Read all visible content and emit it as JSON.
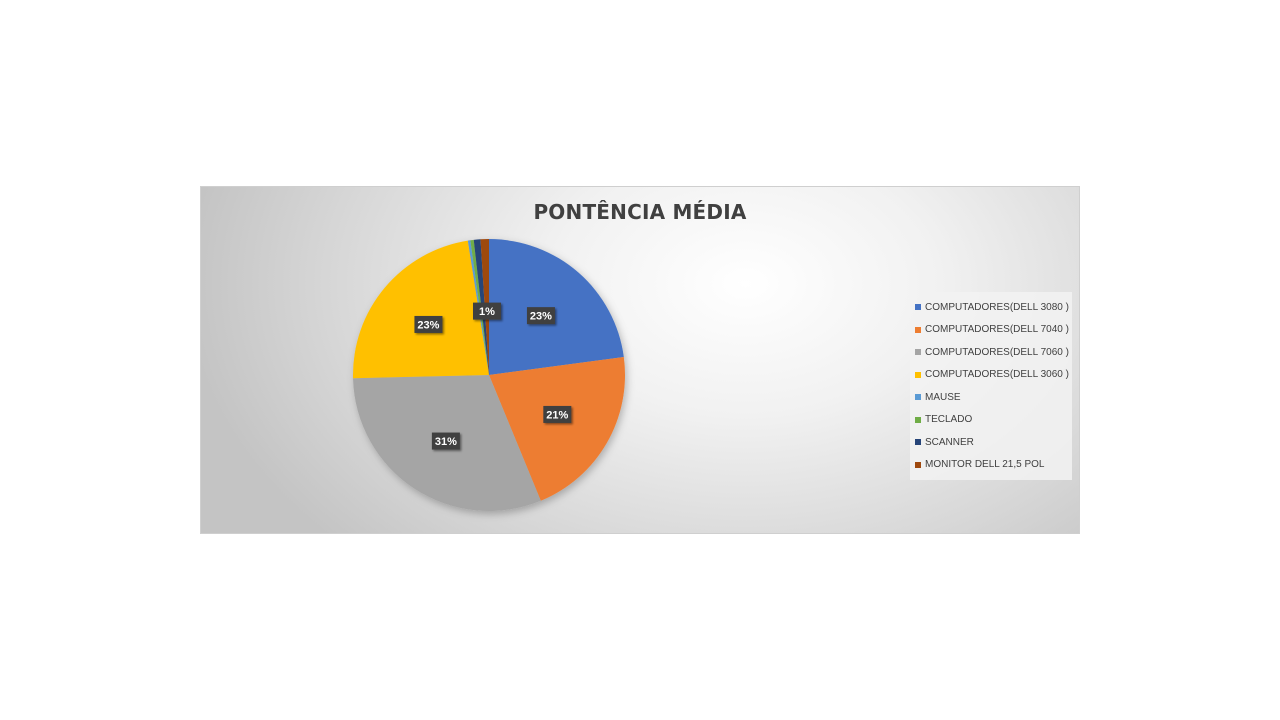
{
  "chart_data": {
    "type": "pie",
    "title": "PONTÊNCIA MÉDIA",
    "legend_position": "right",
    "slices": [
      {
        "label": "COMPUTADORES(DELL 3080 )",
        "value": 23,
        "color": "#4472C4",
        "data_label": "23%"
      },
      {
        "label": "COMPUTADORES(DELL 7040 )",
        "value": 21,
        "color": "#ED7D31",
        "data_label": "21%"
      },
      {
        "label": "COMPUTADORES(DELL 7060 )",
        "value": 31,
        "color": "#A5A5A5",
        "data_label": "31%"
      },
      {
        "label": "COMPUTADORES(DELL 3060 )",
        "value": 23,
        "color": "#FFC000",
        "data_label": "23%"
      },
      {
        "label": "MAUSE",
        "value": 0.3,
        "color": "#5B9BD5",
        "data_label": ""
      },
      {
        "label": "TECLADO",
        "value": 0.4,
        "color": "#70AD47",
        "data_label": ""
      },
      {
        "label": "SCANNER",
        "value": 0.8,
        "color": "#264478",
        "data_label": ""
      },
      {
        "label": "MONITOR DELL 21,5 POL",
        "value": 1,
        "color": "#9E480E",
        "data_label": "1%"
      }
    ]
  }
}
